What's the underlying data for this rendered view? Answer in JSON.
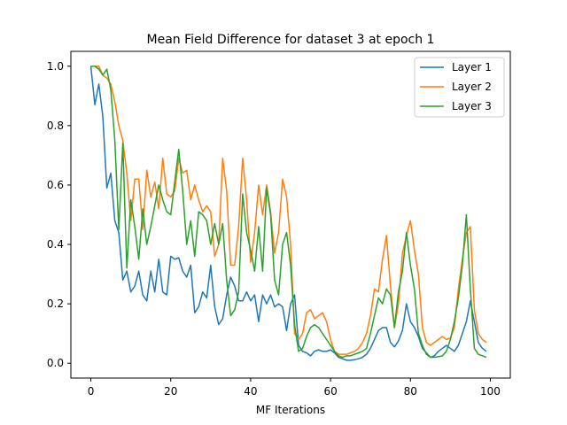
{
  "chart_data": {
    "type": "line",
    "title": "Mean Field Difference for dataset 3 at epoch 1",
    "xlabel": "MF Iterations",
    "ylabel": "",
    "xlim": [
      -5,
      105
    ],
    "ylim": [
      -0.05,
      1.05
    ],
    "xticks": [
      0,
      20,
      40,
      60,
      80,
      100
    ],
    "yticks": [
      0.0,
      0.2,
      0.4,
      0.6,
      0.8,
      1.0
    ],
    "grid": false,
    "legend_position": "top-right",
    "x": [
      0,
      1,
      2,
      3,
      4,
      5,
      6,
      7,
      8,
      9,
      10,
      11,
      12,
      13,
      14,
      15,
      16,
      17,
      18,
      19,
      20,
      21,
      22,
      23,
      24,
      25,
      26,
      27,
      28,
      29,
      30,
      31,
      32,
      33,
      34,
      35,
      36,
      37,
      38,
      39,
      40,
      41,
      42,
      43,
      44,
      45,
      46,
      47,
      48,
      49,
      50,
      51,
      52,
      53,
      54,
      55,
      56,
      57,
      58,
      59,
      60,
      61,
      62,
      63,
      64,
      65,
      66,
      67,
      68,
      69,
      70,
      71,
      72,
      73,
      74,
      75,
      76,
      77,
      78,
      79,
      80,
      81,
      82,
      83,
      84,
      85,
      86,
      87,
      88,
      89,
      90,
      91,
      92,
      93,
      94,
      95,
      96,
      97,
      98,
      99
    ],
    "series": [
      {
        "name": "Layer 1",
        "color": "#1f77b4",
        "values": [
          1.0,
          0.87,
          0.94,
          0.83,
          0.59,
          0.64,
          0.48,
          0.44,
          0.28,
          0.31,
          0.24,
          0.26,
          0.31,
          0.23,
          0.21,
          0.31,
          0.24,
          0.35,
          0.24,
          0.23,
          0.36,
          0.35,
          0.355,
          0.31,
          0.29,
          0.33,
          0.17,
          0.19,
          0.24,
          0.22,
          0.33,
          0.19,
          0.13,
          0.15,
          0.23,
          0.29,
          0.26,
          0.21,
          0.21,
          0.24,
          0.21,
          0.23,
          0.14,
          0.23,
          0.2,
          0.23,
          0.19,
          0.2,
          0.19,
          0.11,
          0.2,
          0.23,
          0.06,
          0.04,
          0.035,
          0.025,
          0.04,
          0.045,
          0.04,
          0.04,
          0.045,
          0.035,
          0.02,
          0.015,
          0.01,
          0.01,
          0.012,
          0.015,
          0.02,
          0.03,
          0.05,
          0.08,
          0.11,
          0.12,
          0.12,
          0.07,
          0.055,
          0.075,
          0.11,
          0.2,
          0.14,
          0.12,
          0.09,
          0.05,
          0.035,
          0.02,
          0.025,
          0.04,
          0.05,
          0.06,
          0.05,
          0.04,
          0.06,
          0.1,
          0.14,
          0.21,
          0.14,
          0.07,
          0.05,
          0.04
        ]
      },
      {
        "name": "Layer 2",
        "color": "#ff7f0e",
        "values": [
          1.0,
          1.0,
          1.0,
          0.97,
          0.96,
          0.94,
          0.88,
          0.8,
          0.75,
          0.64,
          0.48,
          0.62,
          0.62,
          0.45,
          0.65,
          0.56,
          0.61,
          0.52,
          0.69,
          0.57,
          0.56,
          0.58,
          0.69,
          0.64,
          0.65,
          0.55,
          0.6,
          0.55,
          0.51,
          0.53,
          0.51,
          0.36,
          0.4,
          0.69,
          0.58,
          0.33,
          0.33,
          0.46,
          0.69,
          0.55,
          0.34,
          0.44,
          0.6,
          0.5,
          0.6,
          0.51,
          0.37,
          0.44,
          0.62,
          0.56,
          0.4,
          0.1,
          0.08,
          0.1,
          0.17,
          0.18,
          0.15,
          0.16,
          0.17,
          0.14,
          0.08,
          0.04,
          0.03,
          0.03,
          0.03,
          0.035,
          0.04,
          0.05,
          0.07,
          0.1,
          0.16,
          0.25,
          0.24,
          0.35,
          0.43,
          0.26,
          0.12,
          0.2,
          0.37,
          0.43,
          0.48,
          0.38,
          0.3,
          0.12,
          0.07,
          0.06,
          0.07,
          0.08,
          0.09,
          0.08,
          0.085,
          0.12,
          0.25,
          0.35,
          0.44,
          0.46,
          0.18,
          0.1,
          0.08,
          0.07
        ]
      },
      {
        "name": "Layer 3",
        "color": "#2ca02c",
        "values": [
          1.0,
          1.0,
          0.99,
          0.97,
          0.99,
          0.92,
          0.75,
          0.45,
          0.74,
          0.32,
          0.55,
          0.46,
          0.35,
          0.52,
          0.4,
          0.46,
          0.53,
          0.6,
          0.55,
          0.51,
          0.5,
          0.61,
          0.72,
          0.58,
          0.4,
          0.48,
          0.36,
          0.51,
          0.5,
          0.48,
          0.4,
          0.47,
          0.4,
          0.47,
          0.28,
          0.16,
          0.18,
          0.24,
          0.57,
          0.44,
          0.38,
          0.31,
          0.46,
          0.31,
          0.59,
          0.5,
          0.28,
          0.23,
          0.4,
          0.44,
          0.33,
          0.13,
          0.04,
          0.05,
          0.09,
          0.12,
          0.13,
          0.12,
          0.1,
          0.08,
          0.06,
          0.04,
          0.025,
          0.02,
          0.025,
          0.025,
          0.03,
          0.035,
          0.04,
          0.05,
          0.1,
          0.16,
          0.22,
          0.2,
          0.25,
          0.23,
          0.12,
          0.24,
          0.31,
          0.44,
          0.33,
          0.25,
          0.1,
          0.06,
          0.03,
          0.02,
          0.02,
          0.022,
          0.025,
          0.04,
          0.08,
          0.14,
          0.22,
          0.33,
          0.5,
          0.25,
          0.05,
          0.03,
          0.025,
          0.02
        ]
      }
    ]
  }
}
